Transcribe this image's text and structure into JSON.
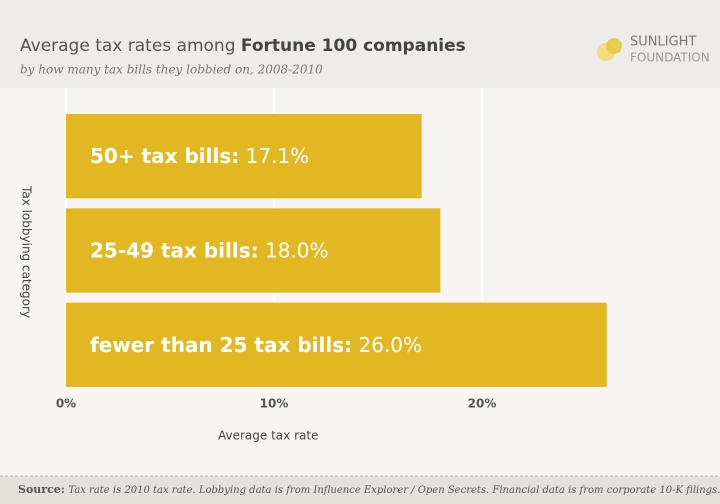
{
  "header": {
    "title": "Average tax rates among",
    "title_bold": "Fortune 100 companies",
    "subtitle": "by how many tax bills they lobbied on, 2008-2010",
    "logo_line1": "SUNLIGHT",
    "logo_line2": "FOUNDATION"
  },
  "chart_data": {
    "type": "barh",
    "categories": [
      "50+ tax bills:",
      "25-49 tax bills:",
      "fewer than 25 tax bills:"
    ],
    "values": [
      17.1,
      18.0,
      26.0
    ],
    "value_labels": [
      "17.1%",
      "18.0%",
      "26.0%"
    ],
    "color": "#e2b822",
    "xlim": [
      0,
      30
    ],
    "xticks": [
      {
        "value": 0,
        "label": "0%"
      },
      {
        "value": 10,
        "label": "10%"
      },
      {
        "value": 20,
        "label": "20%"
      }
    ],
    "grid": true,
    "xlabel": "Average tax rate",
    "ylabel": "Tax lobbying category"
  },
  "footer": {
    "source_label": "Source:",
    "source_text": "Tax rate is 2010 tax rate. Lobbying data is from Influence Explorer / Open Secrets. Financial data is from corporate 10-K filings."
  }
}
